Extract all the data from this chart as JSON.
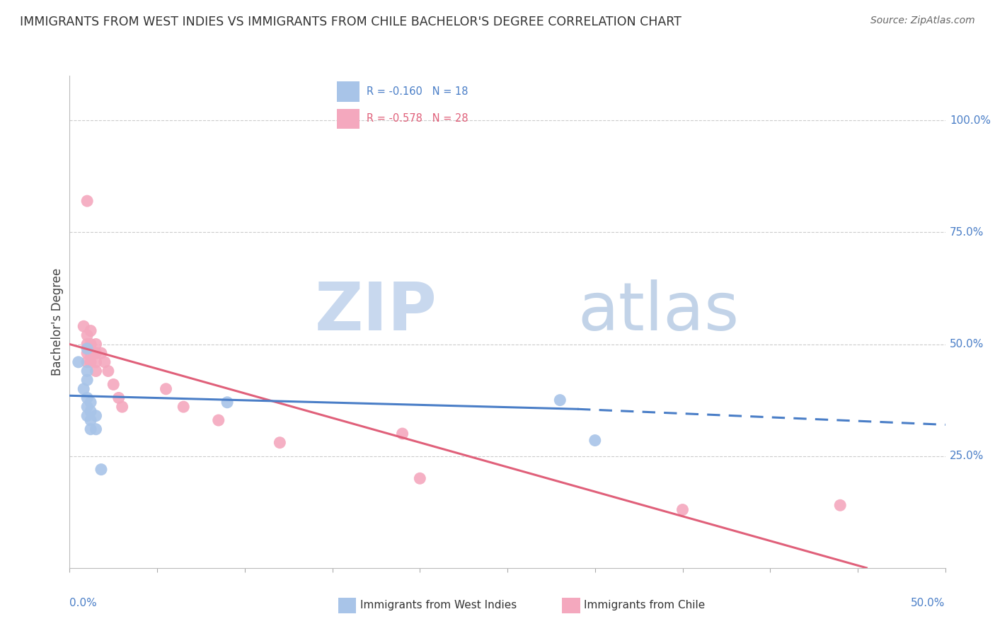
{
  "title": "IMMIGRANTS FROM WEST INDIES VS IMMIGRANTS FROM CHILE BACHELOR'S DEGREE CORRELATION CHART",
  "source": "Source: ZipAtlas.com",
  "ylabel": "Bachelor's Degree",
  "ylabel_right_labels": [
    "100.0%",
    "75.0%",
    "50.0%",
    "25.0%"
  ],
  "ylabel_right_values": [
    1.0,
    0.75,
    0.5,
    0.25
  ],
  "xlim": [
    0.0,
    0.5
  ],
  "ylim": [
    0.0,
    1.1
  ],
  "legend_blue_r": "R = -0.160",
  "legend_blue_n": "N = 18",
  "legend_pink_r": "R = -0.578",
  "legend_pink_n": "N = 28",
  "blue_color": "#a8c4e8",
  "pink_color": "#f4a8be",
  "blue_line_color": "#4a7ec7",
  "pink_line_color": "#e0607a",
  "blue_scatter": [
    [
      0.005,
      0.46
    ],
    [
      0.008,
      0.4
    ],
    [
      0.01,
      0.49
    ],
    [
      0.01,
      0.44
    ],
    [
      0.01,
      0.42
    ],
    [
      0.01,
      0.38
    ],
    [
      0.01,
      0.36
    ],
    [
      0.01,
      0.34
    ],
    [
      0.012,
      0.37
    ],
    [
      0.012,
      0.35
    ],
    [
      0.012,
      0.33
    ],
    [
      0.012,
      0.31
    ],
    [
      0.015,
      0.34
    ],
    [
      0.015,
      0.31
    ],
    [
      0.018,
      0.22
    ],
    [
      0.09,
      0.37
    ],
    [
      0.28,
      0.375
    ],
    [
      0.3,
      0.285
    ]
  ],
  "pink_scatter": [
    [
      0.01,
      0.82
    ],
    [
      0.008,
      0.54
    ],
    [
      0.01,
      0.52
    ],
    [
      0.01,
      0.5
    ],
    [
      0.01,
      0.48
    ],
    [
      0.01,
      0.46
    ],
    [
      0.012,
      0.53
    ],
    [
      0.012,
      0.5
    ],
    [
      0.012,
      0.48
    ],
    [
      0.012,
      0.46
    ],
    [
      0.015,
      0.5
    ],
    [
      0.015,
      0.48
    ],
    [
      0.015,
      0.46
    ],
    [
      0.015,
      0.44
    ],
    [
      0.018,
      0.48
    ],
    [
      0.02,
      0.46
    ],
    [
      0.022,
      0.44
    ],
    [
      0.025,
      0.41
    ],
    [
      0.028,
      0.38
    ],
    [
      0.03,
      0.36
    ],
    [
      0.055,
      0.4
    ],
    [
      0.065,
      0.36
    ],
    [
      0.085,
      0.33
    ],
    [
      0.12,
      0.28
    ],
    [
      0.19,
      0.3
    ],
    [
      0.2,
      0.2
    ],
    [
      0.35,
      0.13
    ],
    [
      0.44,
      0.14
    ]
  ],
  "blue_trendline_solid": [
    [
      0.0,
      0.385
    ],
    [
      0.29,
      0.355
    ]
  ],
  "blue_trendline_dashed": [
    [
      0.29,
      0.355
    ],
    [
      0.5,
      0.32
    ]
  ],
  "pink_trendline": [
    [
      0.0,
      0.5
    ],
    [
      0.455,
      0.0
    ]
  ],
  "grid_color": "#cccccc",
  "watermark_zip": "ZIP",
  "watermark_atlas": "atlas",
  "watermark_color": "#c8d8ee",
  "background_color": "#ffffff"
}
